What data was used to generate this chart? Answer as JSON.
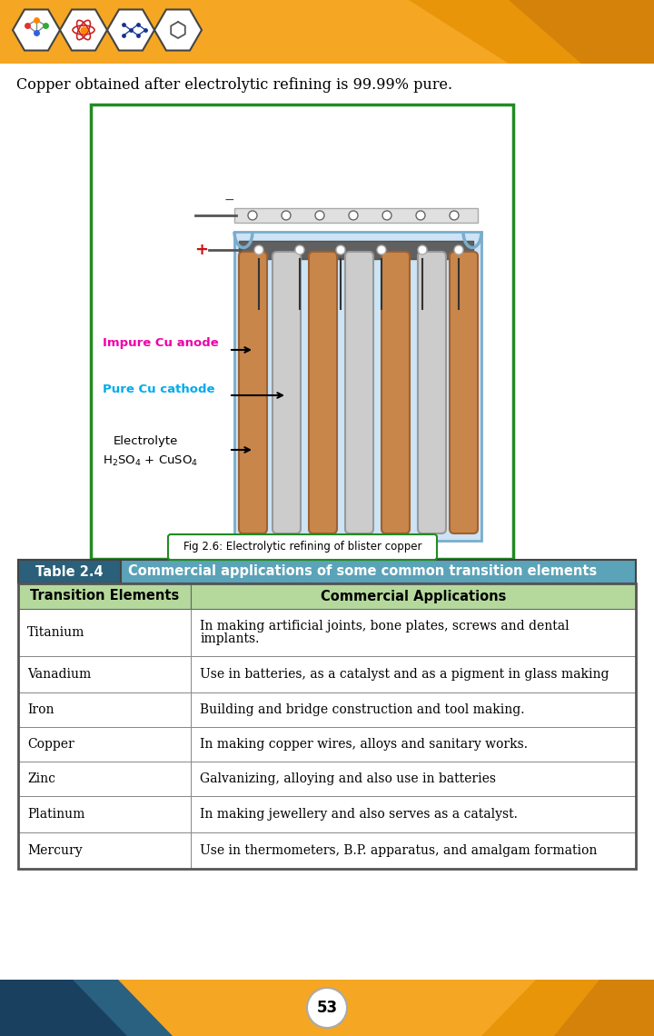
{
  "top_text": "Copper obtained after electrolytic refining is 99.99% pure.",
  "fig_caption": "Fig 2.6: Electrolytic refining of blister copper",
  "table_header_left": "Table 2.4",
  "table_header_right": "Commercial applications of some common transition elements",
  "col1_header": "Transition Elements",
  "col2_header": "Commercial Applications",
  "rows": [
    [
      "Titanium",
      "In making artificial joints, bone plates, screws and dental\nimplants."
    ],
    [
      "Vanadium",
      "Use in batteries, as a catalyst and as a pigment in glass making"
    ],
    [
      "Iron",
      "Building and bridge construction and tool making."
    ],
    [
      "Copper",
      "In making copper wires, alloys and sanitary works."
    ],
    [
      "Zinc",
      "Galvanizing, alloying and also use in batteries"
    ],
    [
      "Platinum",
      "In making jewellery and also serves as a catalyst."
    ],
    [
      "Mercury",
      "Use in thermometers, B.P. apparatus, and amalgam formation"
    ]
  ],
  "header_bg": "#5ba3b8",
  "col_header_bg": "#b5d99c",
  "table_border_color": "#888888",
  "top_bg": "#f5a623",
  "page_bg": "#ffffff",
  "page_number": "53",
  "impure_cu_color": "#ee00aa",
  "pure_cu_color": "#00aaee",
  "diagram_border_color": "#228B22",
  "anode_color": "#c87941",
  "cathode_color": "#c0c0c0",
  "solution_color": "#cce4f5",
  "banner_orange1": "#f5a623",
  "banner_orange2": "#e8950a",
  "banner_orange3": "#d4820a",
  "banner_blue1": "#2a6080",
  "banner_blue2": "#1a4060"
}
